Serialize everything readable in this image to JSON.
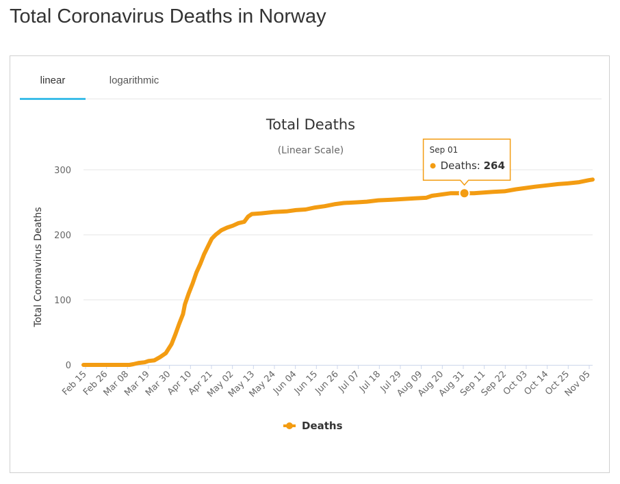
{
  "page": {
    "title": "Total Coronavirus Deaths in Norway"
  },
  "tabs": [
    {
      "label": "linear",
      "active": true
    },
    {
      "label": "logarithmic",
      "active": false
    }
  ],
  "colors": {
    "series": "#f39c12",
    "tab_underline": "#3cbde8",
    "grid": "#e6e6e6"
  },
  "chart_data": {
    "type": "line",
    "title": "Total Deaths",
    "subtitle": "(Linear Scale)",
    "ylabel": "Total Coronavirus Deaths",
    "xlabel": "",
    "ylim": [
      0,
      300
    ],
    "yticks": [
      0,
      100,
      200,
      300
    ],
    "xlim": [
      "2020-02-15",
      "2020-11-07"
    ],
    "xticks": [
      "Feb 15",
      "Feb 26",
      "Mar 08",
      "Mar 19",
      "Mar 30",
      "Apr 10",
      "Apr 21",
      "May 02",
      "May 13",
      "May 24",
      "Jun 04",
      "Jun 15",
      "Jun 26",
      "Jul 07",
      "Jul 18",
      "Jul 29",
      "Aug 09",
      "Aug 20",
      "Aug 31",
      "Sep 11",
      "Sep 22",
      "Oct 03",
      "Oct 14",
      "Oct 25",
      "Nov 05"
    ],
    "legend": {
      "position": "bottom-center"
    },
    "grid": true,
    "series": [
      {
        "name": "Deaths",
        "color": "#f39c12",
        "points": [
          [
            "2020-02-15",
            0
          ],
          [
            "2020-03-10",
            0
          ],
          [
            "2020-03-12",
            1
          ],
          [
            "2020-03-15",
            3
          ],
          [
            "2020-03-18",
            4
          ],
          [
            "2020-03-20",
            6
          ],
          [
            "2020-03-23",
            7
          ],
          [
            "2020-03-26",
            12
          ],
          [
            "2020-03-29",
            18
          ],
          [
            "2020-04-01",
            32
          ],
          [
            "2020-04-03",
            47
          ],
          [
            "2020-04-05",
            63
          ],
          [
            "2020-04-07",
            78
          ],
          [
            "2020-04-08",
            93
          ],
          [
            "2020-04-10",
            110
          ],
          [
            "2020-04-12",
            125
          ],
          [
            "2020-04-14",
            142
          ],
          [
            "2020-04-16",
            155
          ],
          [
            "2020-04-18",
            170
          ],
          [
            "2020-04-20",
            182
          ],
          [
            "2020-04-22",
            194
          ],
          [
            "2020-04-24",
            200
          ],
          [
            "2020-04-27",
            207
          ],
          [
            "2020-04-30",
            211
          ],
          [
            "2020-05-03",
            214
          ],
          [
            "2020-05-06",
            218
          ],
          [
            "2020-05-09",
            220
          ],
          [
            "2020-05-11",
            228
          ],
          [
            "2020-05-13",
            232
          ],
          [
            "2020-05-18",
            233
          ],
          [
            "2020-05-24",
            235
          ],
          [
            "2020-05-31",
            236
          ],
          [
            "2020-06-05",
            238
          ],
          [
            "2020-06-10",
            239
          ],
          [
            "2020-06-15",
            242
          ],
          [
            "2020-06-20",
            244
          ],
          [
            "2020-06-25",
            247
          ],
          [
            "2020-06-30",
            249
          ],
          [
            "2020-07-07",
            250
          ],
          [
            "2020-07-12",
            251
          ],
          [
            "2020-07-18",
            253
          ],
          [
            "2020-07-25",
            254
          ],
          [
            "2020-07-31",
            255
          ],
          [
            "2020-08-06",
            256
          ],
          [
            "2020-08-12",
            257
          ],
          [
            "2020-08-15",
            260
          ],
          [
            "2020-08-20",
            262
          ],
          [
            "2020-08-25",
            264
          ],
          [
            "2020-09-01",
            264
          ],
          [
            "2020-09-06",
            264
          ],
          [
            "2020-09-11",
            265
          ],
          [
            "2020-09-16",
            266
          ],
          [
            "2020-09-22",
            267
          ],
          [
            "2020-09-28",
            270
          ],
          [
            "2020-10-03",
            272
          ],
          [
            "2020-10-08",
            274
          ],
          [
            "2020-10-14",
            276
          ],
          [
            "2020-10-20",
            278
          ],
          [
            "2020-10-25",
            279
          ],
          [
            "2020-10-31",
            281
          ],
          [
            "2020-11-05",
            284
          ],
          [
            "2020-11-07",
            285
          ]
        ]
      }
    ],
    "tooltip": {
      "date": "Sep 01",
      "series": "Deaths",
      "value": 264,
      "x": "2020-09-01"
    }
  }
}
